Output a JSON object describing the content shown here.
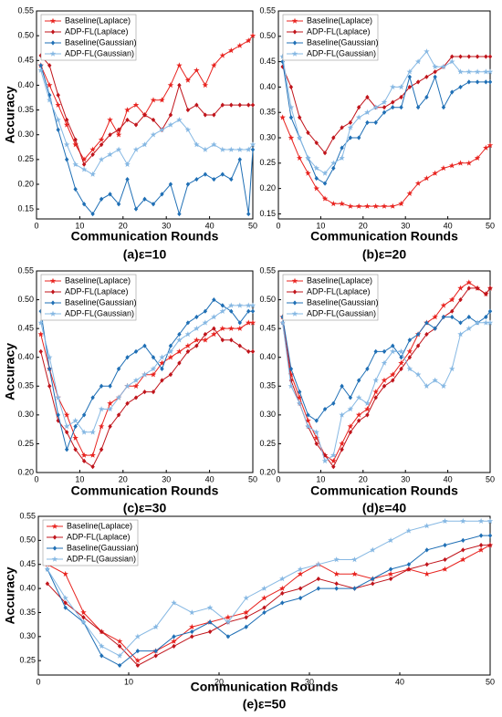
{
  "chart_data": [
    {
      "type": "line",
      "xlabel": "Communication Rounds",
      "ylabel": "Accuracy",
      "caption": "(a)ε=10",
      "x": [
        1,
        3,
        5,
        7,
        9,
        11,
        13,
        15,
        17,
        19,
        21,
        23,
        25,
        27,
        29,
        31,
        33,
        35,
        37,
        39,
        41,
        43,
        45,
        47,
        49,
        50
      ],
      "xlim": [
        0,
        50
      ],
      "xticks": [
        0,
        10,
        20,
        30,
        40,
        50
      ],
      "ylim": [
        0.13,
        0.55
      ],
      "yticks": [
        0.15,
        {
          "value": 0.2,
          "label": "0.20"
        },
        0.25,
        {
          "value": 0.3,
          "label": "0.30"
        },
        0.35,
        {
          "value": 0.4,
          "label": "0.40"
        },
        0.45,
        {
          "value": 0.5,
          "label": "0.50"
        },
        0.55
      ],
      "series": [
        {
          "name": "Baseline(Laplace)",
          "color": "#e8231f",
          "marker": "star",
          "values": [
            0.44,
            0.4,
            0.36,
            0.32,
            0.28,
            0.25,
            0.27,
            0.29,
            0.33,
            0.3,
            0.35,
            0.36,
            0.34,
            0.37,
            0.37,
            0.4,
            0.44,
            0.41,
            0.43,
            0.4,
            0.44,
            0.46,
            0.47,
            0.48,
            0.49,
            0.5
          ]
        },
        {
          "name": "ADP-FL(Laplace)",
          "color": "#c0141b",
          "marker": "diamond",
          "values": [
            0.46,
            0.44,
            0.38,
            0.33,
            0.29,
            0.24,
            0.26,
            0.28,
            0.3,
            0.31,
            0.33,
            0.32,
            0.34,
            0.33,
            0.31,
            0.34,
            0.4,
            0.35,
            0.36,
            0.34,
            0.34,
            0.36,
            0.36,
            0.36,
            0.36,
            0.36
          ]
        },
        {
          "name": "Baseline(Gaussian)",
          "color": "#1f6fb5",
          "marker": "diamond",
          "values": [
            0.44,
            0.38,
            0.31,
            0.25,
            0.19,
            0.16,
            0.14,
            0.17,
            0.18,
            0.16,
            0.21,
            0.15,
            0.17,
            0.16,
            0.18,
            0.2,
            0.14,
            0.2,
            0.21,
            0.22,
            0.21,
            0.22,
            0.21,
            0.25,
            0.14,
            0.27
          ]
        },
        {
          "name": "ADP-FL(Gaussian)",
          "color": "#86b8e3",
          "marker": "star",
          "values": [
            0.43,
            0.37,
            0.33,
            0.28,
            0.24,
            0.23,
            0.22,
            0.25,
            0.26,
            0.27,
            0.24,
            0.27,
            0.28,
            0.3,
            0.31,
            0.32,
            0.33,
            0.31,
            0.28,
            0.27,
            0.28,
            0.27,
            0.27,
            0.27,
            0.27,
            0.28
          ]
        }
      ]
    },
    {
      "type": "line",
      "xlabel": "Communication Rounds",
      "caption": "(b)ε=20",
      "x": [
        1,
        3,
        5,
        7,
        9,
        11,
        13,
        15,
        17,
        19,
        21,
        23,
        25,
        27,
        29,
        31,
        33,
        35,
        37,
        39,
        41,
        43,
        45,
        47,
        49,
        50
      ],
      "xlim": [
        0,
        50
      ],
      "xticks": [
        0,
        10,
        20,
        30,
        40,
        50
      ],
      "ylim": [
        0.14,
        0.55
      ],
      "yticks": [
        0.15,
        {
          "value": 0.2,
          "label": "0.20"
        },
        0.25,
        {
          "value": 0.3,
          "label": "0.30"
        },
        0.35,
        {
          "value": 0.4,
          "label": "0.40"
        },
        0.45,
        {
          "value": 0.5,
          "label": "0.50"
        },
        0.55
      ],
      "series": [
        {
          "name": "Baseline(Laplace)",
          "color": "#e8231f",
          "marker": "star",
          "values": [
            0.34,
            0.3,
            0.26,
            0.23,
            0.2,
            0.18,
            0.17,
            0.17,
            0.165,
            0.165,
            0.165,
            0.165,
            0.165,
            0.165,
            0.17,
            0.19,
            0.21,
            0.22,
            0.23,
            0.24,
            0.245,
            0.25,
            0.25,
            0.26,
            0.28,
            0.285
          ]
        },
        {
          "name": "ADP-FL(Laplace)",
          "color": "#c0141b",
          "marker": "diamond",
          "values": [
            0.44,
            0.4,
            0.34,
            0.31,
            0.29,
            0.27,
            0.3,
            0.32,
            0.33,
            0.36,
            0.38,
            0.36,
            0.36,
            0.37,
            0.38,
            0.4,
            0.41,
            0.42,
            0.43,
            0.44,
            0.46,
            0.46,
            0.46,
            0.46,
            0.46,
            0.46
          ]
        },
        {
          "name": "Baseline(Gaussian)",
          "color": "#1f6fb5",
          "marker": "diamond",
          "values": [
            0.45,
            0.34,
            0.3,
            0.26,
            0.22,
            0.21,
            0.24,
            0.28,
            0.3,
            0.3,
            0.33,
            0.33,
            0.35,
            0.36,
            0.36,
            0.42,
            0.36,
            0.38,
            0.42,
            0.36,
            0.39,
            0.4,
            0.41,
            0.41,
            0.41,
            0.41
          ]
        },
        {
          "name": "ADP-FL(Gaussian)",
          "color": "#86b8e3",
          "marker": "star",
          "values": [
            0.46,
            0.36,
            0.3,
            0.26,
            0.24,
            0.23,
            0.25,
            0.26,
            0.32,
            0.34,
            0.35,
            0.36,
            0.37,
            0.4,
            0.4,
            0.43,
            0.45,
            0.47,
            0.44,
            0.44,
            0.45,
            0.43,
            0.43,
            0.43,
            0.43,
            0.43
          ]
        }
      ]
    },
    {
      "type": "line",
      "xlabel": "Communication Rounds",
      "ylabel": "Accuracy",
      "caption": "(c)ε=30",
      "x": [
        1,
        3,
        5,
        7,
        9,
        11,
        13,
        15,
        17,
        19,
        21,
        23,
        25,
        27,
        29,
        31,
        33,
        35,
        37,
        39,
        41,
        43,
        45,
        47,
        49,
        50
      ],
      "xlim": [
        0,
        50
      ],
      "xticks": [
        0,
        10,
        20,
        30,
        40,
        50
      ],
      "ylim": [
        0.2,
        0.55
      ],
      "yticks": [
        {
          "value": 0.2,
          "label": "0.20"
        },
        0.25,
        {
          "value": 0.3,
          "label": "0.30"
        },
        0.35,
        {
          "value": 0.4,
          "label": "0.40"
        },
        0.45,
        {
          "value": 0.5,
          "label": "0.50"
        },
        0.55
      ],
      "series": [
        {
          "name": "Baseline(Laplace)",
          "color": "#e8231f",
          "marker": "star",
          "values": [
            0.44,
            0.38,
            0.33,
            0.3,
            0.26,
            0.23,
            0.23,
            0.28,
            0.32,
            0.33,
            0.35,
            0.35,
            0.37,
            0.37,
            0.39,
            0.4,
            0.41,
            0.42,
            0.43,
            0.43,
            0.44,
            0.45,
            0.45,
            0.45,
            0.46,
            0.46
          ]
        },
        {
          "name": "ADP-FL(Laplace)",
          "color": "#c0141b",
          "marker": "diamond",
          "values": [
            0.41,
            0.35,
            0.29,
            0.27,
            0.24,
            0.22,
            0.21,
            0.24,
            0.28,
            0.3,
            0.32,
            0.33,
            0.34,
            0.34,
            0.36,
            0.37,
            0.39,
            0.41,
            0.42,
            0.44,
            0.45,
            0.43,
            0.43,
            0.42,
            0.41,
            0.41
          ]
        },
        {
          "name": "Baseline(Gaussian)",
          "color": "#1f6fb5",
          "marker": "diamond",
          "values": [
            0.48,
            0.38,
            0.3,
            0.24,
            0.28,
            0.3,
            0.33,
            0.35,
            0.35,
            0.38,
            0.4,
            0.41,
            0.42,
            0.4,
            0.38,
            0.42,
            0.44,
            0.46,
            0.47,
            0.48,
            0.5,
            0.49,
            0.48,
            0.46,
            0.48,
            0.48
          ]
        },
        {
          "name": "ADP-FL(Gaussian)",
          "color": "#86b8e3",
          "marker": "star",
          "values": [
            0.46,
            0.4,
            0.33,
            0.28,
            0.29,
            0.27,
            0.27,
            0.31,
            0.31,
            0.33,
            0.35,
            0.36,
            0.37,
            0.38,
            0.4,
            0.41,
            0.43,
            0.44,
            0.45,
            0.46,
            0.47,
            0.48,
            0.49,
            0.49,
            0.49,
            0.49
          ]
        }
      ]
    },
    {
      "type": "line",
      "xlabel": "Communication Rounds",
      "caption": "(d)ε=40",
      "x": [
        1,
        3,
        5,
        7,
        9,
        11,
        13,
        15,
        17,
        19,
        21,
        23,
        25,
        27,
        29,
        31,
        33,
        35,
        37,
        39,
        41,
        43,
        45,
        47,
        49,
        50
      ],
      "xlim": [
        0,
        50
      ],
      "xticks": [
        0,
        10,
        20,
        30,
        40,
        50
      ],
      "ylim": [
        0.2,
        0.55
      ],
      "yticks": [
        {
          "value": 0.2,
          "label": "0.20"
        },
        0.25,
        {
          "value": 0.3,
          "label": "0.30"
        },
        0.35,
        {
          "value": 0.4,
          "label": "0.40"
        },
        0.45,
        {
          "value": 0.5,
          "label": "0.50"
        },
        0.55
      ],
      "series": [
        {
          "name": "Baseline(Laplace)",
          "color": "#e8231f",
          "marker": "star",
          "values": [
            0.47,
            0.37,
            0.33,
            0.29,
            0.26,
            0.23,
            0.22,
            0.25,
            0.28,
            0.3,
            0.31,
            0.34,
            0.36,
            0.37,
            0.39,
            0.41,
            0.44,
            0.46,
            0.47,
            0.49,
            0.5,
            0.52,
            0.53,
            0.52,
            0.51,
            0.52
          ]
        },
        {
          "name": "ADP-FL(Laplace)",
          "color": "#c0141b",
          "marker": "diamond",
          "values": [
            0.46,
            0.36,
            0.32,
            0.28,
            0.25,
            0.23,
            0.21,
            0.24,
            0.27,
            0.29,
            0.3,
            0.33,
            0.35,
            0.36,
            0.38,
            0.4,
            0.42,
            0.44,
            0.45,
            0.47,
            0.48,
            0.5,
            0.52,
            0.52,
            0.51,
            0.52
          ]
        },
        {
          "name": "Baseline(Gaussian)",
          "color": "#1f6fb5",
          "marker": "diamond",
          "values": [
            0.47,
            0.38,
            0.34,
            0.3,
            0.29,
            0.31,
            0.32,
            0.35,
            0.33,
            0.36,
            0.38,
            0.41,
            0.41,
            0.42,
            0.4,
            0.43,
            0.44,
            0.46,
            0.45,
            0.47,
            0.47,
            0.46,
            0.47,
            0.46,
            0.47,
            0.48
          ]
        },
        {
          "name": "ADP-FL(Gaussian)",
          "color": "#86b8e3",
          "marker": "star",
          "values": [
            0.46,
            0.35,
            0.32,
            0.28,
            0.27,
            0.22,
            0.23,
            0.3,
            0.31,
            0.33,
            0.32,
            0.36,
            0.39,
            0.41,
            0.41,
            0.38,
            0.37,
            0.35,
            0.36,
            0.35,
            0.38,
            0.44,
            0.45,
            0.46,
            0.46,
            0.46
          ]
        }
      ]
    },
    {
      "type": "line",
      "xlabel": "Communication Rounds",
      "ylabel": "Accuracy",
      "caption": "(e)ε=50",
      "x": [
        1,
        3,
        5,
        7,
        9,
        11,
        13,
        15,
        17,
        19,
        21,
        23,
        25,
        27,
        29,
        31,
        33,
        35,
        37,
        39,
        41,
        43,
        45,
        47,
        49,
        50
      ],
      "xlim": [
        0,
        50
      ],
      "xticks": [
        0,
        10,
        20,
        30,
        40,
        50
      ],
      "ylim": [
        0.22,
        0.55
      ],
      "yticks": [
        0.25,
        {
          "value": 0.3,
          "label": "0.30"
        },
        0.35,
        {
          "value": 0.4,
          "label": "0.40"
        },
        0.45,
        {
          "value": 0.5,
          "label": "0.50"
        },
        0.55
      ],
      "series": [
        {
          "name": "Baseline(Laplace)",
          "color": "#e8231f",
          "marker": "star",
          "values": [
            0.45,
            0.43,
            0.35,
            0.31,
            0.29,
            0.25,
            0.27,
            0.29,
            0.32,
            0.33,
            0.34,
            0.35,
            0.38,
            0.4,
            0.43,
            0.45,
            0.43,
            0.43,
            0.42,
            0.43,
            0.44,
            0.43,
            0.44,
            0.46,
            0.48,
            0.49
          ]
        },
        {
          "name": "ADP-FL(Laplace)",
          "color": "#c0141b",
          "marker": "diamond",
          "values": [
            0.41,
            0.37,
            0.34,
            0.31,
            0.28,
            0.24,
            0.26,
            0.28,
            0.3,
            0.31,
            0.33,
            0.34,
            0.36,
            0.39,
            0.4,
            0.42,
            0.41,
            0.4,
            0.41,
            0.42,
            0.44,
            0.45,
            0.46,
            0.48,
            0.49,
            0.49
          ]
        },
        {
          "name": "Baseline(Gaussian)",
          "color": "#1f6fb5",
          "marker": "diamond",
          "values": [
            0.44,
            0.36,
            0.33,
            0.26,
            0.24,
            0.27,
            0.27,
            0.3,
            0.31,
            0.33,
            0.3,
            0.32,
            0.35,
            0.37,
            0.38,
            0.4,
            0.4,
            0.4,
            0.42,
            0.44,
            0.45,
            0.48,
            0.49,
            0.5,
            0.51,
            0.51
          ]
        },
        {
          "name": "ADP-FL(Gaussian)",
          "color": "#86b8e3",
          "marker": "star",
          "values": [
            0.44,
            0.38,
            0.33,
            0.28,
            0.26,
            0.3,
            0.32,
            0.37,
            0.35,
            0.36,
            0.33,
            0.38,
            0.4,
            0.42,
            0.44,
            0.45,
            0.46,
            0.46,
            0.48,
            0.5,
            0.52,
            0.53,
            0.54,
            0.54,
            0.54,
            0.54
          ]
        }
      ]
    }
  ]
}
